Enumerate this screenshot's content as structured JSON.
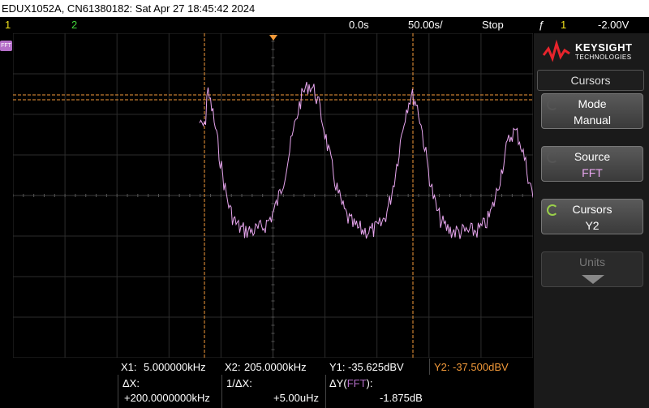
{
  "title_bar": {
    "text": "EDUX1052A, CN61380182: Sat Apr 27 18:45:42 2024"
  },
  "status_bar": {
    "ch1": "1",
    "ch2": "2",
    "time_delay": "0.0s",
    "time_scale": "50.00s/",
    "run_state": "Stop",
    "trigger_symbol": "ƒ",
    "trigger_channel": "1",
    "trigger_level": "-2.00V"
  },
  "fft_label": "FFT",
  "brand": {
    "name": "KEYSIGHT",
    "sub": "TECHNOLOGIES"
  },
  "menu": {
    "title": "Cursors",
    "softkeys": [
      {
        "label": "Mode",
        "value": "Manual"
      },
      {
        "label": "Source",
        "value": "FFT"
      },
      {
        "label": "Cursors",
        "value": "Y2"
      },
      {
        "label": "Units",
        "value": ""
      }
    ]
  },
  "readout": {
    "x1_label": "X1:",
    "x1_value": "5.000000kHz",
    "x2_label": "X2:",
    "x2_value": "205.0000kHz",
    "y1_label": "Y1:",
    "y1_value": "-35.625dBV",
    "y2_label": "Y2:",
    "y2_value": "-37.500dBV",
    "dx_label": "ΔX:",
    "dx_value": "+200.0000000kHz",
    "inv_dx_label": "1/ΔX:",
    "inv_dx_value": "+5.00uHz",
    "dy_label": "ΔY(",
    "dy_source": "FFT",
    "dy_label_end": "):",
    "dy_value": "-1.875dB"
  },
  "colors": {
    "trace": "#e8a6ef",
    "cursor": "#f39a3a",
    "ch1": "#f2e21c",
    "ch2": "#42d43a",
    "fft": "#b46ec8",
    "grid": "#3a3a3a"
  }
}
